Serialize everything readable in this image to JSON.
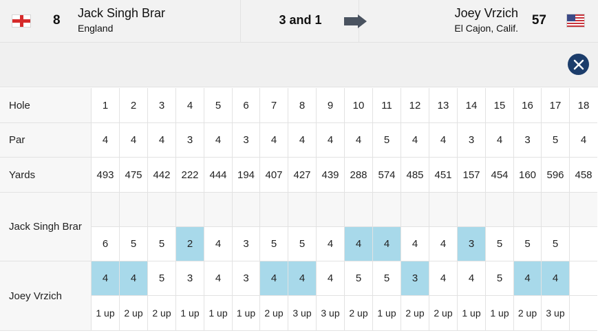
{
  "header": {
    "player1": {
      "seed": "8",
      "name": "Jack Singh Brar",
      "location": "England",
      "flag": "england-flag"
    },
    "result": "3 and 1",
    "player2": {
      "seed": "57",
      "name": "Joey Vrzich",
      "location": "El Cajon, Calif.",
      "flag": "usa-flag"
    },
    "winner_arrow_icon": "arrow-right-icon"
  },
  "close_icon": "close-icon",
  "colors": {
    "highlight": "#a8d9ea",
    "close_button": "#1c3d6b",
    "header_bg": "#f2f2f2"
  },
  "scorecard": {
    "labels": {
      "hole": "Hole",
      "par": "Par",
      "yards": "Yards",
      "player1": "Jack Singh Brar",
      "player2": "Joey Vrzich"
    },
    "holes": [
      "1",
      "2",
      "3",
      "4",
      "5",
      "6",
      "7",
      "8",
      "9",
      "10",
      "11",
      "12",
      "13",
      "14",
      "15",
      "16",
      "17",
      "18"
    ],
    "par": [
      "4",
      "4",
      "4",
      "3",
      "4",
      "3",
      "4",
      "4",
      "4",
      "4",
      "5",
      "4",
      "4",
      "3",
      "4",
      "3",
      "5",
      "4"
    ],
    "yards": [
      "493",
      "475",
      "442",
      "222",
      "444",
      "194",
      "407",
      "427",
      "439",
      "288",
      "574",
      "485",
      "451",
      "157",
      "454",
      "160",
      "596",
      "458"
    ],
    "player1_scores": [
      "6",
      "5",
      "5",
      "2",
      "4",
      "3",
      "5",
      "5",
      "4",
      "4",
      "4",
      "4",
      "4",
      "3",
      "5",
      "5",
      "5",
      ""
    ],
    "player1_won": [
      false,
      false,
      false,
      true,
      false,
      false,
      false,
      false,
      false,
      true,
      true,
      false,
      false,
      true,
      false,
      false,
      false,
      false
    ],
    "player2_scores": [
      "4",
      "4",
      "5",
      "3",
      "4",
      "3",
      "4",
      "4",
      "4",
      "5",
      "5",
      "3",
      "4",
      "4",
      "5",
      "4",
      "4",
      ""
    ],
    "player2_won": [
      true,
      true,
      false,
      false,
      false,
      false,
      true,
      true,
      false,
      false,
      false,
      true,
      false,
      false,
      false,
      true,
      true,
      false
    ],
    "match_status": [
      "1 up",
      "2 up",
      "2 up",
      "1 up",
      "1 up",
      "1 up",
      "2 up",
      "3 up",
      "3 up",
      "2 up",
      "1 up",
      "2 up",
      "2 up",
      "1 up",
      "1 up",
      "2 up",
      "3 up",
      ""
    ]
  }
}
